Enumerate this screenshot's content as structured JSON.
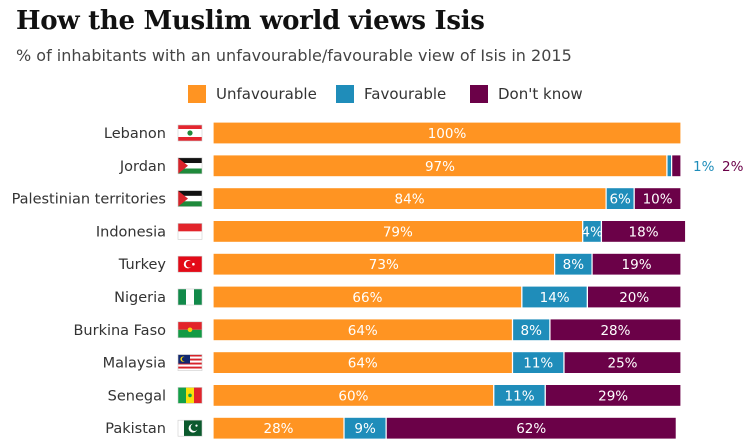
{
  "title": "How the Muslim world views Isis",
  "subtitle": "% of inhabitants with an unfavourable/favourable view of Isis in 2015",
  "colors": {
    "unfavourable": "#ff9422",
    "favourable": "#1f8dba",
    "dont_know": "#6b0148",
    "label_white": "#ffffff"
  },
  "legend": [
    {
      "key": "unfavourable",
      "label": "Unfavourable"
    },
    {
      "key": "favourable",
      "label": "Favourable"
    },
    {
      "key": "dont_know",
      "label": "Don't know"
    }
  ],
  "chart_data": {
    "type": "bar",
    "orientation": "horizontal",
    "stacked": true,
    "title": "How the Muslim world views Isis",
    "subtitle": "% of inhabitants with an unfavourable/favourable view of Isis in 2015",
    "xlim": [
      0,
      100
    ],
    "grid": false,
    "legend_position": "top",
    "categories": [
      "Lebanon",
      "Jordan",
      "Palestinian territories",
      "Indonesia",
      "Turkey",
      "Nigeria",
      "Burkina Faso",
      "Malaysia",
      "Senegal",
      "Pakistan"
    ],
    "series": [
      {
        "name": "Unfavourable",
        "key": "unfavourable",
        "values": [
          100,
          97,
          84,
          79,
          73,
          66,
          64,
          64,
          60,
          28
        ]
      },
      {
        "name": "Favourable",
        "key": "favourable",
        "values": [
          0,
          1,
          6,
          4,
          8,
          14,
          8,
          11,
          11,
          9
        ]
      },
      {
        "name": "Don't know",
        "key": "dont_know",
        "values": [
          0,
          2,
          10,
          18,
          19,
          20,
          28,
          25,
          29,
          62
        ]
      }
    ],
    "outside_labels": [
      {
        "category": "Jordan",
        "series": "favourable",
        "text": "1%"
      },
      {
        "category": "Jordan",
        "series": "dont_know",
        "text": "2%"
      }
    ]
  }
}
